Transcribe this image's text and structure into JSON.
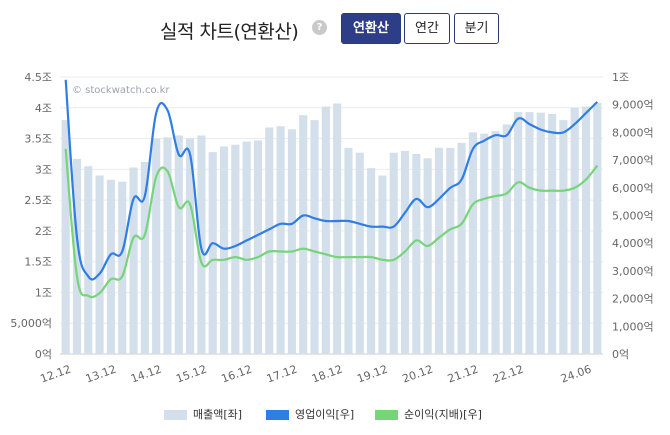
{
  "header": {
    "title": "실적 차트(연환산)",
    "help_icon": "?",
    "tabs": [
      {
        "label": "연환산",
        "active": true
      },
      {
        "label": "연간",
        "active": false
      },
      {
        "label": "분기",
        "active": false
      }
    ]
  },
  "watermark": "© stockwatch.co.kr",
  "colors": {
    "bars": "#d3dfeb",
    "operating_profit": "#2f7ee6",
    "net_profit": "#76d479",
    "active_tab": "#2d3d87"
  },
  "chart_data": {
    "type": "bar",
    "x_tick_labels": [
      "12.12",
      "13.12",
      "14.12",
      "15.12",
      "16.12",
      "17.12",
      "18.12",
      "19.12",
      "20.12",
      "21.12",
      "22.12",
      "24.06"
    ],
    "x_tick_positions": [
      0,
      4,
      8,
      12,
      16,
      20,
      24,
      28,
      32,
      36,
      40,
      46
    ],
    "ylim_left": [
      0,
      4.5
    ],
    "ylim_right": [
      0,
      10000
    ],
    "left_ticks": [
      {
        "v": 4.5,
        "label": "4.5조"
      },
      {
        "v": 4,
        "label": "4조"
      },
      {
        "v": 3.5,
        "label": "3.5조"
      },
      {
        "v": 3,
        "label": "3조"
      },
      {
        "v": 2.5,
        "label": "2.5조"
      },
      {
        "v": 2,
        "label": "2조"
      },
      {
        "v": 1.5,
        "label": "1.5조"
      },
      {
        "v": 1,
        "label": "1조"
      },
      {
        "v": 0.5,
        "label": "5,000억"
      },
      {
        "v": 0,
        "label": "0억"
      }
    ],
    "right_ticks": [
      {
        "v": 10000,
        "label": "1조"
      },
      {
        "v": 9000,
        "label": "9,000억"
      },
      {
        "v": 8000,
        "label": "8,000억"
      },
      {
        "v": 7000,
        "label": "7,000억"
      },
      {
        "v": 6000,
        "label": "6,000억"
      },
      {
        "v": 5000,
        "label": "5,000억"
      },
      {
        "v": 4000,
        "label": "4,000억"
      },
      {
        "v": 3000,
        "label": "3,000억"
      },
      {
        "v": 2000,
        "label": "2,000억"
      },
      {
        "v": 1000,
        "label": "1,000억"
      },
      {
        "v": 0,
        "label": "0억"
      }
    ],
    "series": [
      {
        "name": "매출액[좌]",
        "axis": "left",
        "values": [
          3.8,
          3.17,
          3.05,
          2.9,
          2.83,
          2.8,
          3.03,
          3.12,
          3.5,
          3.52,
          3.55,
          3.5,
          3.55,
          3.28,
          3.37,
          3.4,
          3.45,
          3.47,
          3.68,
          3.7,
          3.65,
          3.88,
          3.8,
          4.02,
          4.07,
          3.35,
          3.27,
          3.02,
          2.9,
          3.27,
          3.3,
          3.25,
          3.18,
          3.35,
          3.35,
          3.43,
          3.6,
          3.58,
          3.62,
          3.73,
          3.93,
          3.93,
          3.92,
          3.9,
          3.8,
          4.0,
          4.02,
          4.08
        ]
      },
      {
        "name": "영업이익[우]",
        "axis": "right",
        "values": [
          9900,
          4200,
          2800,
          2900,
          3600,
          3700,
          5600,
          5700,
          8700,
          8800,
          7200,
          7200,
          3800,
          4000,
          3800,
          3900,
          4100,
          4300,
          4500,
          4700,
          4700,
          5000,
          4900,
          4800,
          4800,
          4800,
          4700,
          4600,
          4600,
          4600,
          5100,
          5600,
          5300,
          5600,
          6000,
          6300,
          7400,
          7700,
          7900,
          7900,
          8500,
          8300,
          8100,
          8000,
          8000,
          8300,
          8700,
          9100
        ]
      },
      {
        "name": "순이익(지배)[우]",
        "axis": "right",
        "values": [
          7400,
          2800,
          2100,
          2200,
          2700,
          2800,
          4200,
          4300,
          6400,
          6600,
          5300,
          5400,
          3300,
          3400,
          3400,
          3500,
          3400,
          3500,
          3700,
          3700,
          3700,
          3800,
          3700,
          3600,
          3500,
          3500,
          3500,
          3500,
          3400,
          3400,
          3700,
          4100,
          3900,
          4200,
          4500,
          4700,
          5400,
          5600,
          5700,
          5800,
          6200,
          6000,
          5900,
          5900,
          5900,
          6000,
          6300,
          6800
        ]
      }
    ]
  }
}
